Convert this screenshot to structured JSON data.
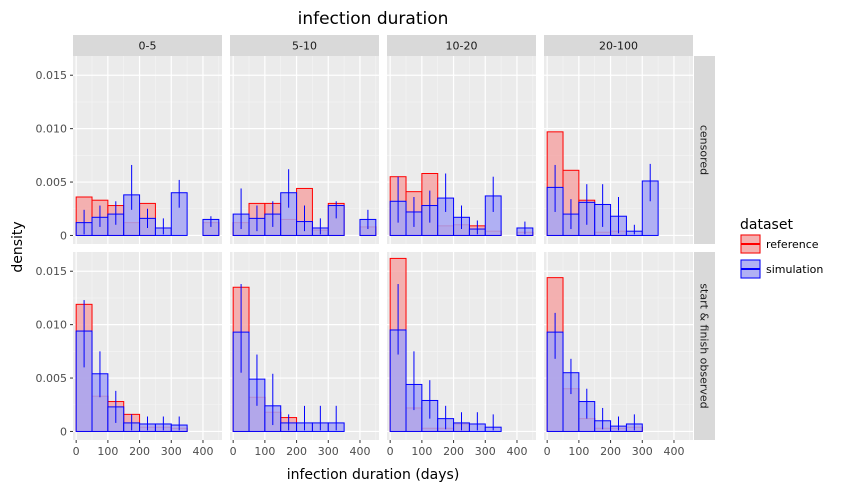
{
  "chart_data": {
    "type": "bar",
    "title": "infection duration",
    "xlabel": "infection duration (days)",
    "ylabel": "density",
    "xlim": [
      -10,
      460
    ],
    "ylim": [
      -0.0008,
      0.0168
    ],
    "x_ticks": [
      0,
      100,
      200,
      300,
      400
    ],
    "y_ticks": [
      0,
      0.005,
      0.01,
      0.015
    ],
    "y_tick_labels": [
      "0",
      "0.005",
      "0.010",
      "0.015"
    ],
    "bin_width": 50,
    "bin_centers": [
      25,
      75,
      125,
      175,
      225,
      275,
      325,
      375,
      425
    ],
    "columns": [
      "0-5",
      "5-10",
      "10-20",
      "20-100"
    ],
    "rows": [
      "censored",
      "start & finish observed"
    ],
    "legend": {
      "title": "dataset",
      "placement": "right",
      "entries": [
        {
          "label": "reference",
          "fill": "#f4a6a6",
          "stroke": "#ff0000"
        },
        {
          "label": "simulation",
          "fill": "#a6a6f4",
          "stroke": "#0000ff"
        }
      ]
    },
    "panels": [
      {
        "row": "censored",
        "col": "0-5",
        "reference": [
          0.0036,
          0.0033,
          0.0028,
          0.0012,
          0.003,
          0,
          0,
          0,
          0.0012
        ],
        "simulation": [
          0.0012,
          0.0017,
          0.002,
          0.0038,
          0.0016,
          0.0007,
          0.004,
          0,
          0.0015
        ],
        "err_low": [
          0.0001,
          0.0008,
          0.001,
          0.0024,
          0.0007,
          0.0001,
          0.0026,
          null,
          0.0008
        ],
        "err_high": [
          0.0024,
          0.0028,
          0.0032,
          0.0066,
          0.0025,
          0.0016,
          0.0052,
          null,
          0.0018
        ]
      },
      {
        "row": "censored",
        "col": "5-10",
        "reference": [
          0.0012,
          0.003,
          0.003,
          0.0015,
          0.0044,
          0.0005,
          0.003,
          0,
          0.0008
        ],
        "simulation": [
          0.002,
          0.0016,
          0.002,
          0.004,
          0.0013,
          0.0007,
          0.0028,
          0,
          0.0015
        ],
        "err_low": [
          0.0006,
          0.0004,
          0.0008,
          0.0026,
          0.0004,
          0.0001,
          0.0016,
          null,
          0.0006
        ],
        "err_high": [
          0.0044,
          0.0028,
          0.0032,
          0.0062,
          0.0028,
          0.0016,
          0.0032,
          null,
          0.0024
        ]
      },
      {
        "row": "censored",
        "col": "10-20",
        "reference": [
          0.0055,
          0.0041,
          0.0058,
          0.0009,
          0.001,
          0.0009,
          0.0004,
          0,
          0.0003
        ],
        "simulation": [
          0.0032,
          0.0022,
          0.0028,
          0.0035,
          0.0017,
          0.0006,
          0.0037,
          0,
          0.0007
        ],
        "err_low": [
          0.0012,
          0.0008,
          0.0012,
          0.0022,
          0.0006,
          0.0001,
          0.0022,
          null,
          0.0001
        ],
        "err_high": [
          0.0055,
          0.0036,
          0.0042,
          0.0058,
          0.0028,
          0.0014,
          0.0055,
          null,
          0.0013
        ]
      },
      {
        "row": "censored",
        "col": "20-100",
        "reference": [
          0.0097,
          0.0061,
          0.0033,
          0.0003,
          0.0004,
          0,
          0,
          0,
          0
        ],
        "simulation": [
          0.0045,
          0.002,
          0.0031,
          0.0029,
          0.0018,
          0.0004,
          0.0051,
          0,
          0
        ],
        "err_low": [
          0.0022,
          0.0006,
          0.001,
          0.0008,
          0.0002,
          0.0001,
          0.0032,
          null,
          null
        ],
        "err_high": [
          0.0066,
          0.0034,
          0.0048,
          0.0048,
          0.0036,
          0.001,
          0.0067,
          null,
          null
        ]
      },
      {
        "row": "start & finish observed",
        "col": "0-5",
        "reference": [
          0.0119,
          0.0033,
          0.0028,
          0.0016,
          0.0004,
          0.0004,
          0.0003,
          0,
          0
        ],
        "simulation": [
          0.0094,
          0.0054,
          0.0023,
          0.0008,
          0.0007,
          0.0007,
          0.0006,
          0,
          0
        ],
        "err_low": [
          0.006,
          0.0032,
          0.0008,
          0.0001,
          0.0001,
          0.0001,
          0.0001,
          null,
          null
        ],
        "err_high": [
          0.0123,
          0.0075,
          0.0038,
          0.0016,
          0.0014,
          0.0014,
          0.0014,
          null,
          null
        ]
      },
      {
        "row": "start & finish observed",
        "col": "5-10",
        "reference": [
          0.0135,
          0.0032,
          0.0018,
          0.0013,
          0,
          0,
          0,
          0,
          0
        ],
        "simulation": [
          0.0093,
          0.0049,
          0.0024,
          0.0008,
          0.0008,
          0.0008,
          0.0008,
          0,
          0
        ],
        "err_low": [
          0.0055,
          0.0024,
          0.0006,
          0.0001,
          0.0001,
          0.0001,
          0.0001,
          null,
          null
        ],
        "err_high": [
          0.0138,
          0.0072,
          0.0054,
          0.0016,
          0.0024,
          0.0024,
          0.0024,
          null,
          null
        ]
      },
      {
        "row": "start & finish observed",
        "col": "10-20",
        "reference": [
          0.0162,
          0.0022,
          0.0003,
          0.0003,
          0.0007,
          0,
          0,
          0,
          0
        ],
        "simulation": [
          0.0095,
          0.0044,
          0.0029,
          0.0012,
          0.0008,
          0.0007,
          0.0004,
          0,
          0
        ],
        "err_low": [
          0.0072,
          0.002,
          0.0012,
          0.0002,
          0.0001,
          0.0001,
          0.0001,
          null,
          null
        ],
        "err_high": [
          0.0138,
          0.0075,
          0.0048,
          0.0024,
          0.0018,
          0.0018,
          0.0016,
          null,
          null
        ]
      },
      {
        "row": "start & finish observed",
        "col": "20-100",
        "reference": [
          0.0144,
          0.004,
          0.0012,
          0.0003,
          0.0003,
          0.0004,
          0,
          0,
          0
        ],
        "simulation": [
          0.0093,
          0.0055,
          0.0028,
          0.001,
          0.0005,
          0.0007,
          0,
          0,
          0
        ],
        "err_low": [
          0.0068,
          0.0035,
          0.0012,
          0.0002,
          0.0001,
          0.0001,
          null,
          null,
          null
        ],
        "err_high": [
          0.0111,
          0.0068,
          0.004,
          0.0022,
          0.0014,
          0.0016,
          null,
          null,
          null
        ]
      }
    ]
  }
}
